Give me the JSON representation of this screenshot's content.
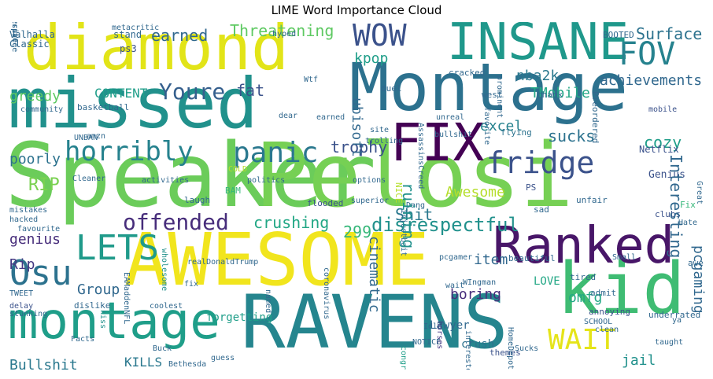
{
  "chart_data": {
    "type": "word_cloud",
    "title": "LIME Word Importance Cloud",
    "colormap": "viridis",
    "words": [
      {
        "text": "Speaker",
        "color": "#6bcc5a",
        "vertical": false
      },
      {
        "text": "Pelosi",
        "color": "#76d054",
        "vertical": false
      },
      {
        "text": "Montage",
        "color": "#2c718e",
        "vertical": false
      },
      {
        "text": "missed",
        "color": "#21918c",
        "vertical": false
      },
      {
        "text": "diamond",
        "color": "#e2e418",
        "vertical": false
      },
      {
        "text": "AWESOME",
        "color": "#f1e51d",
        "vertical": false
      },
      {
        "text": "RAVENS",
        "color": "#25858e",
        "vertical": false
      },
      {
        "text": "INSANE",
        "color": "#1f988b",
        "vertical": false
      },
      {
        "text": "kid",
        "color": "#3fbc73",
        "vertical": false
      },
      {
        "text": "montage",
        "color": "#1f9e89",
        "vertical": false
      },
      {
        "text": "Ranked",
        "color": "#481668",
        "vertical": false
      },
      {
        "text": "FIX",
        "color": "#440154",
        "vertical": false
      },
      {
        "text": "horribly",
        "color": "#26828e",
        "vertical": false
      },
      {
        "text": "panic",
        "color": "#2a788e",
        "vertical": false
      },
      {
        "text": "fridge",
        "color": "#3b528b",
        "vertical": false
      },
      {
        "text": "WOW",
        "color": "#3b528b",
        "vertical": false
      },
      {
        "text": "FOV",
        "color": "#26828e",
        "vertical": false
      },
      {
        "text": "Osu",
        "color": "#2c728e",
        "vertical": false
      },
      {
        "text": "LETS",
        "color": "#1f9a8a",
        "vertical": false
      },
      {
        "text": "offended",
        "color": "#472d7b",
        "vertical": false
      },
      {
        "text": "WAIT",
        "color": "#e5e419",
        "vertical": false
      },
      {
        "text": "Youre",
        "color": "#355f8d",
        "vertical": false
      },
      {
        "text": "disrespectful",
        "color": "#21918c",
        "vertical": false
      },
      {
        "text": "crushing",
        "color": "#22a785",
        "vertical": false
      },
      {
        "text": "Threatening",
        "color": "#5ec962",
        "vertical": false
      },
      {
        "text": "earned",
        "color": "#31688e",
        "vertical": false
      },
      {
        "text": "Surface",
        "color": "#2c728e",
        "vertical": false
      },
      {
        "text": "achievements",
        "color": "#31688e",
        "vertical": false
      },
      {
        "text": "TMobile",
        "color": "#22a785",
        "vertical": false
      },
      {
        "text": "nba2k",
        "color": "#2a788e",
        "vertical": false
      },
      {
        "text": "kpop",
        "color": "#1f9e89",
        "vertical": false
      },
      {
        "text": "CONTENT",
        "color": "#1f9e89",
        "vertical": false
      },
      {
        "text": "greedy",
        "color": "#5ec962",
        "vertical": false
      },
      {
        "text": "fat",
        "color": "#3b528b",
        "vertical": false
      },
      {
        "text": "trophy",
        "color": "#3b528b",
        "vertical": false
      },
      {
        "text": "sucks",
        "color": "#2c728e",
        "vertical": false
      },
      {
        "text": "cozy",
        "color": "#1f9e89",
        "vertical": false
      },
      {
        "text": "excel",
        "color": "#26828e",
        "vertical": false
      },
      {
        "text": "poorly",
        "color": "#2c728e",
        "vertical": false
      },
      {
        "text": "RIP",
        "color": "#7ad151",
        "vertical": false
      },
      {
        "text": "Awesome",
        "color": "#b5de2b",
        "vertical": false
      },
      {
        "text": "Shit",
        "color": "#2a788e",
        "vertical": false
      },
      {
        "text": "299",
        "color": "#35b779",
        "vertical": false
      },
      {
        "text": "genius",
        "color": "#472d7b",
        "vertical": false
      },
      {
        "text": "Rip",
        "color": "#443983",
        "vertical": false
      },
      {
        "text": "Group",
        "color": "#31688e",
        "vertical": false
      },
      {
        "text": "item",
        "color": "#31688e",
        "vertical": false
      },
      {
        "text": "boring",
        "color": "#472d7b",
        "vertical": false
      },
      {
        "text": "omfg",
        "color": "#22a785",
        "vertical": false
      },
      {
        "text": "jail",
        "color": "#21918c",
        "vertical": false
      },
      {
        "text": "Bullshit",
        "color": "#2a788e",
        "vertical": false
      },
      {
        "text": "KILLS",
        "color": "#2a788e",
        "vertical": false
      },
      {
        "text": "LOVE",
        "color": "#22a785",
        "vertical": false
      },
      {
        "text": "forgetting",
        "color": "#1f9e89",
        "vertical": false
      },
      {
        "text": "Lawyer",
        "color": "#31688e",
        "vertical": false
      },
      {
        "text": "crush",
        "color": "#2c728e",
        "vertical": false
      },
      {
        "text": "Genius",
        "color": "#3b528b",
        "vertical": false
      },
      {
        "text": "Netflix",
        "color": "#3b528b",
        "vertical": false
      },
      {
        "text": "stand",
        "color": "#31688e",
        "vertical": false
      },
      {
        "text": "metacritic",
        "color": "#31688e",
        "vertical": false
      },
      {
        "text": "ps3",
        "color": "#3b528b",
        "vertical": false
      },
      {
        "text": "Valhalla",
        "color": "#31688e",
        "vertical": false
      },
      {
        "text": "Classic",
        "color": "#31688e",
        "vertical": false
      },
      {
        "text": "duel",
        "color": "#31688e",
        "vertical": false
      },
      {
        "text": "cracked",
        "color": "#31688e",
        "vertical": false
      },
      {
        "text": "west",
        "color": "#31688e",
        "vertical": false
      },
      {
        "text": "thank",
        "color": "#31688e",
        "vertical": false
      },
      {
        "text": "BOOTED",
        "color": "#31688e",
        "vertical": false
      },
      {
        "text": "mobile",
        "color": "#3b528b",
        "vertical": false
      },
      {
        "text": "Fix",
        "color": "#35b779",
        "vertical": false
      },
      {
        "text": "Hate",
        "color": "#31688e",
        "vertical": false
      },
      {
        "text": "awe",
        "color": "#31688e",
        "vertical": false
      },
      {
        "text": "Small",
        "color": "#31688e",
        "vertical": false
      },
      {
        "text": "clubs",
        "color": "#3b528b",
        "vertical": false
      },
      {
        "text": "unfair",
        "color": "#31688e",
        "vertical": false
      },
      {
        "text": "PS",
        "color": "#3b528b",
        "vertical": false
      },
      {
        "text": "flying",
        "color": "#2c728e",
        "vertical": false
      },
      {
        "text": "sad",
        "color": "#31688e",
        "vertical": false
      },
      {
        "text": "beautiful",
        "color": "#31688e",
        "vertical": false
      },
      {
        "text": "tired",
        "color": "#31688e",
        "vertical": false
      },
      {
        "text": "admit",
        "color": "#31688e",
        "vertical": false
      },
      {
        "text": "underrated",
        "color": "#31688e",
        "vertical": false
      },
      {
        "text": "ya",
        "color": "#31688e",
        "vertical": false
      },
      {
        "text": "annoying",
        "color": "#3b528b",
        "vertical": false
      },
      {
        "text": "SCHOOL",
        "color": "#31688e",
        "vertical": false
      },
      {
        "text": "themes",
        "color": "#3b528b",
        "vertical": false
      },
      {
        "text": "Sucks",
        "color": "#31688e",
        "vertical": false
      },
      {
        "text": "taught",
        "color": "#31688e",
        "vertical": false
      },
      {
        "text": "clean",
        "color": "#31688e",
        "vertical": false
      },
      {
        "text": "NOTICE",
        "color": "#31688e",
        "vertical": false
      },
      {
        "text": "Idle",
        "color": "#31688e",
        "vertical": false
      },
      {
        "text": "wait",
        "color": "#31688e",
        "vertical": false
      },
      {
        "text": "WIngman",
        "color": "#31688e",
        "vertical": false
      },
      {
        "text": "pcgamer",
        "color": "#31688e",
        "vertical": false
      },
      {
        "text": "Dang",
        "color": "#31688e",
        "vertical": false
      },
      {
        "text": "flooded",
        "color": "#3b528b",
        "vertical": false
      },
      {
        "text": "options",
        "color": "#31688e",
        "vertical": false
      },
      {
        "text": "superior",
        "color": "#31688e",
        "vertical": false
      },
      {
        "text": "politics",
        "color": "#31688e",
        "vertical": false
      },
      {
        "text": "activities",
        "color": "#31688e",
        "vertical": false
      },
      {
        "text": "Cleaner",
        "color": "#31688e",
        "vertical": false
      },
      {
        "text": "mistakes",
        "color": "#31688e",
        "vertical": false
      },
      {
        "text": "hacked",
        "color": "#31688e",
        "vertical": false
      },
      {
        "text": "favourite",
        "color": "#31688e",
        "vertical": false
      },
      {
        "text": "TWEET",
        "color": "#31688e",
        "vertical": false
      },
      {
        "text": "delay",
        "color": "#3b528b",
        "vertical": false
      },
      {
        "text": "stunning",
        "color": "#31688e",
        "vertical": false
      },
      {
        "text": "dislike",
        "color": "#31688e",
        "vertical": false
      },
      {
        "text": "Facts",
        "color": "#31688e",
        "vertical": false
      },
      {
        "text": "Buck",
        "color": "#31688e",
        "vertical": false
      },
      {
        "text": "Bethesda",
        "color": "#31688e",
        "vertical": false
      },
      {
        "text": "guess",
        "color": "#31688e",
        "vertical": false
      },
      {
        "text": "coolest",
        "color": "#31688e",
        "vertical": false
      },
      {
        "text": "fix",
        "color": "#31688e",
        "vertical": false
      },
      {
        "text": "realDonaldTrump",
        "color": "#31688e",
        "vertical": false
      },
      {
        "text": "laugh",
        "color": "#31688e",
        "vertical": false
      },
      {
        "text": "BAM",
        "color": "#35b779",
        "vertical": false
      },
      {
        "text": "COLD",
        "color": "#b5de2b",
        "vertical": false
      },
      {
        "text": "UNBAN",
        "color": "#31688e",
        "vertical": false
      },
      {
        "text": "amzn",
        "color": "#31688e",
        "vertical": false
      },
      {
        "text": "bullshit",
        "color": "#31688e",
        "vertical": false
      },
      {
        "text": "unreal",
        "color": "#31688e",
        "vertical": false
      },
      {
        "text": "site",
        "color": "#31688e",
        "vertical": false
      },
      {
        "text": "trolling",
        "color": "#31688e",
        "vertical": false
      },
      {
        "text": "hyped",
        "color": "#31688e",
        "vertical": false
      },
      {
        "text": "community",
        "color": "#31688e",
        "vertical": false
      },
      {
        "text": "basketball",
        "color": "#31688e",
        "vertical": false
      },
      {
        "text": "Wtf",
        "color": "#31688e",
        "vertical": false
      },
      {
        "text": "dear",
        "color": "#31688e",
        "vertical": false
      },
      {
        "text": "earned",
        "color": "#31688e",
        "vertical": false
      },
      {
        "text": "AssassinsCreed",
        "color": "#31688e",
        "vertical": true
      },
      {
        "text": "NICE",
        "color": "#b5de2b",
        "vertical": true
      },
      {
        "text": "injustbait",
        "color": "#31688e",
        "vertical": true
      },
      {
        "text": "favorite",
        "color": "#31688e",
        "vertical": true
      },
      {
        "text": "prominent",
        "color": "#31688e",
        "vertical": true
      },
      {
        "text": "Preordered",
        "color": "#31688e",
        "vertical": true
      },
      {
        "text": "Interesting",
        "color": "#31688e",
        "vertical": true
      },
      {
        "text": "pcgaming",
        "color": "#31688e",
        "vertical": true
      },
      {
        "text": "Great",
        "color": "#31688e",
        "vertical": true
      },
      {
        "text": "ubisoft",
        "color": "#31688e",
        "vertical": true
      },
      {
        "text": "cinematic",
        "color": "#31688e",
        "vertical": true
      },
      {
        "text": "ruining",
        "color": "#21918c",
        "vertical": true
      },
      {
        "text": "wholesome",
        "color": "#21918c",
        "vertical": true
      },
      {
        "text": "EAMaddenNFL",
        "color": "#31688e",
        "vertical": true
      },
      {
        "text": "kiss",
        "color": "#21918c",
        "vertical": true
      },
      {
        "text": "congrats",
        "color": "#1f9e89",
        "vertical": true
      },
      {
        "text": "horses",
        "color": "#443983",
        "vertical": true
      },
      {
        "text": "interested",
        "color": "#31688e",
        "vertical": true
      },
      {
        "text": "named",
        "color": "#31688e",
        "vertical": true
      },
      {
        "text": "coronavirus",
        "color": "#31688e",
        "vertical": true
      },
      {
        "text": "HomeDepot",
        "color": "#31688e",
        "vertical": true
      },
      {
        "text": "appreciate",
        "color": "#31688e",
        "vertical": true
      },
      {
        "text": "masterpiece",
        "color": "#31688e",
        "vertical": true
      },
      {
        "text": "immersive",
        "color": "#31688e",
        "vertical": true
      },
      {
        "text": "SORT",
        "color": "#b5de2b",
        "vertical": true
      },
      {
        "text": "lineup",
        "color": "#31688e",
        "vertical": false
      }
    ]
  }
}
